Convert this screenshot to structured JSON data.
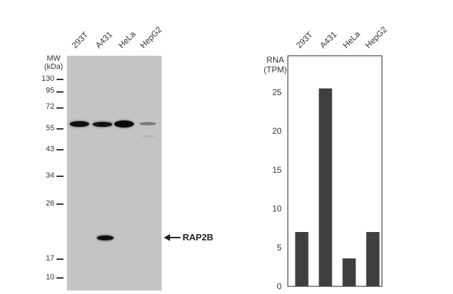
{
  "western_blot": {
    "lanes": [
      "293T",
      "A431",
      "HeLa",
      "HepG2"
    ],
    "mw_title_line1": "MW",
    "mw_title_line2": "(kDa)",
    "mw_markers": [
      "130",
      "95",
      "72",
      "55",
      "43",
      "34",
      "26",
      "17",
      "10"
    ],
    "target_label": "RAP2B"
  },
  "chart_data": {
    "type": "bar",
    "categories": [
      "293T",
      "A431",
      "HeLa",
      "HepG2"
    ],
    "values": [
      7.0,
      25.5,
      3.6,
      7.0
    ],
    "title": "",
    "ylabel_line1": "RNA",
    "ylabel_line2": "(TPM)",
    "ylim": [
      0,
      25
    ],
    "yticks": [
      "0",
      "5",
      "10",
      "15",
      "20",
      "25"
    ],
    "bar_color": "#3f3f3f"
  }
}
